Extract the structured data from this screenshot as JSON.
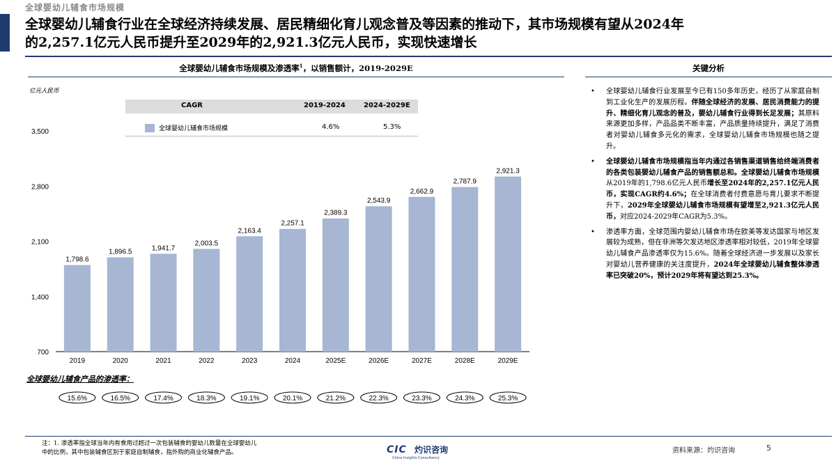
{
  "header": {
    "section_label": "全球婴幼儿辅食市场规模",
    "headline_line1": "全球婴幼儿辅食行业在全球经济持续发展、居民精细化育儿观念普及等因素的推动下，其市场规模有望从2024年",
    "headline_line2": "的2,257.1亿元人民币提升至2029年的2,921.3亿元人民币，实现快速增长"
  },
  "chart_data": {
    "type": "bar",
    "title": "全球婴幼儿辅食市场规模及渗透率",
    "title_superscript": "1",
    "title_suffix": "，以销售额计，2019-2029E",
    "ylabel": "亿元人民币",
    "ylim": [
      700,
      3500
    ],
    "yticks": [
      700,
      1400,
      2100,
      2800,
      3500
    ],
    "ytick_labels": [
      "700",
      "1,400",
      "2,100",
      "2,800",
      "3,500"
    ],
    "categories": [
      "2019",
      "2020",
      "2021",
      "2022",
      "2023",
      "2024",
      "2025E",
      "2026E",
      "2027E",
      "2028E",
      "2029E"
    ],
    "series": [
      {
        "name": "全球婴幼儿辅食市场规模",
        "values": [
          1798.6,
          1896.5,
          1941.7,
          2003.5,
          2163.4,
          2257.1,
          2389.3,
          2543.9,
          2662.9,
          2787.9,
          2921.3
        ],
        "value_labels": [
          "1,798.6",
          "1,896.5",
          "1,941.7",
          "2,003.5",
          "2,163.4",
          "2,257.1",
          "2,389.3",
          "2,543.9",
          "2,662.9",
          "2,787.9",
          "2,921.3"
        ]
      }
    ],
    "bar_color": "#a6b6d3",
    "cagr": {
      "label": "CAGR",
      "headers": [
        "2019-2024",
        "2024-2029E"
      ],
      "values": [
        "4.6%",
        "5.3%"
      ]
    },
    "penetration": {
      "title": "全球婴幼儿辅食产品的渗透率：",
      "values": [
        "15.6%",
        "16.5%",
        "17.4%",
        "18.3%",
        "19.1%",
        "20.1%",
        "21.2%",
        "22.3%",
        "23.3%",
        "24.3%",
        "25.3%"
      ]
    }
  },
  "analysis": {
    "heading": "关键分析",
    "bullet1": {
      "t1": "全球婴幼儿辅食行业发展至今已有150多年历史，经历了从家庭自制到工业化生产的发展历程。",
      "b1": "伴随全球经济的发展、居民消费能力的提升、精细化育儿观念的普及，婴幼儿辅食行业得到长足发展；",
      "t2": "其原料来源更加多样，产品品类不断丰富，产品质量持续提升，满足了消费者对婴幼儿辅食多元化的需求，全球婴幼儿辅食市场规模也随之提升。"
    },
    "bullet2": {
      "b1": "全球婴幼儿辅食市场规模指当年内通过各销售渠道销售给终端消费者的各类包装婴幼儿辅食产品的销售额总和。全球婴幼儿辅食市场规模",
      "t1": "从2019年的1,798.6亿元人民币",
      "b2": "增长至2024年的2,257.1亿元人民币，实现CAGR约4.6%；",
      "t2": "在全球消费者付费意愿与育儿要求不断提升下，",
      "b3": "2029年全球婴幼儿辅食市场规模有望增至2,921.3亿元人民币，",
      "t3": "对应2024-2029年CAGR为5.3%。"
    },
    "bullet3": {
      "t1": "渗透率方面，全球范围内婴幼儿辅食市场在欧美等发达国家与地区发展较为成熟，但在非洲等欠发达地区渗透率相对较低，2019年全球婴幼儿辅食产品渗透率仅为15.6%。随着全球经济进一步发展以及家长对婴幼儿营养健康的关注度提升，",
      "b1": "2024年全球婴幼儿辅食整体渗透率已突破20%，预计2029年将有望达到25.3%。"
    }
  },
  "footer": {
    "note_line1": "注：1. 渗透率指全球当年内有食用过超过一次包装辅食的婴幼儿数量在全球婴幼儿",
    "note_line2": "中的比例，其中包装辅食区别于家庭自制辅食，指外购的商业化辅食产品。",
    "logo_cic": "CIC",
    "logo_cn": "灼识咨询",
    "logo_en": "China Insights Consultancy",
    "source": "资料来源：灼识咨询",
    "page": "5"
  }
}
